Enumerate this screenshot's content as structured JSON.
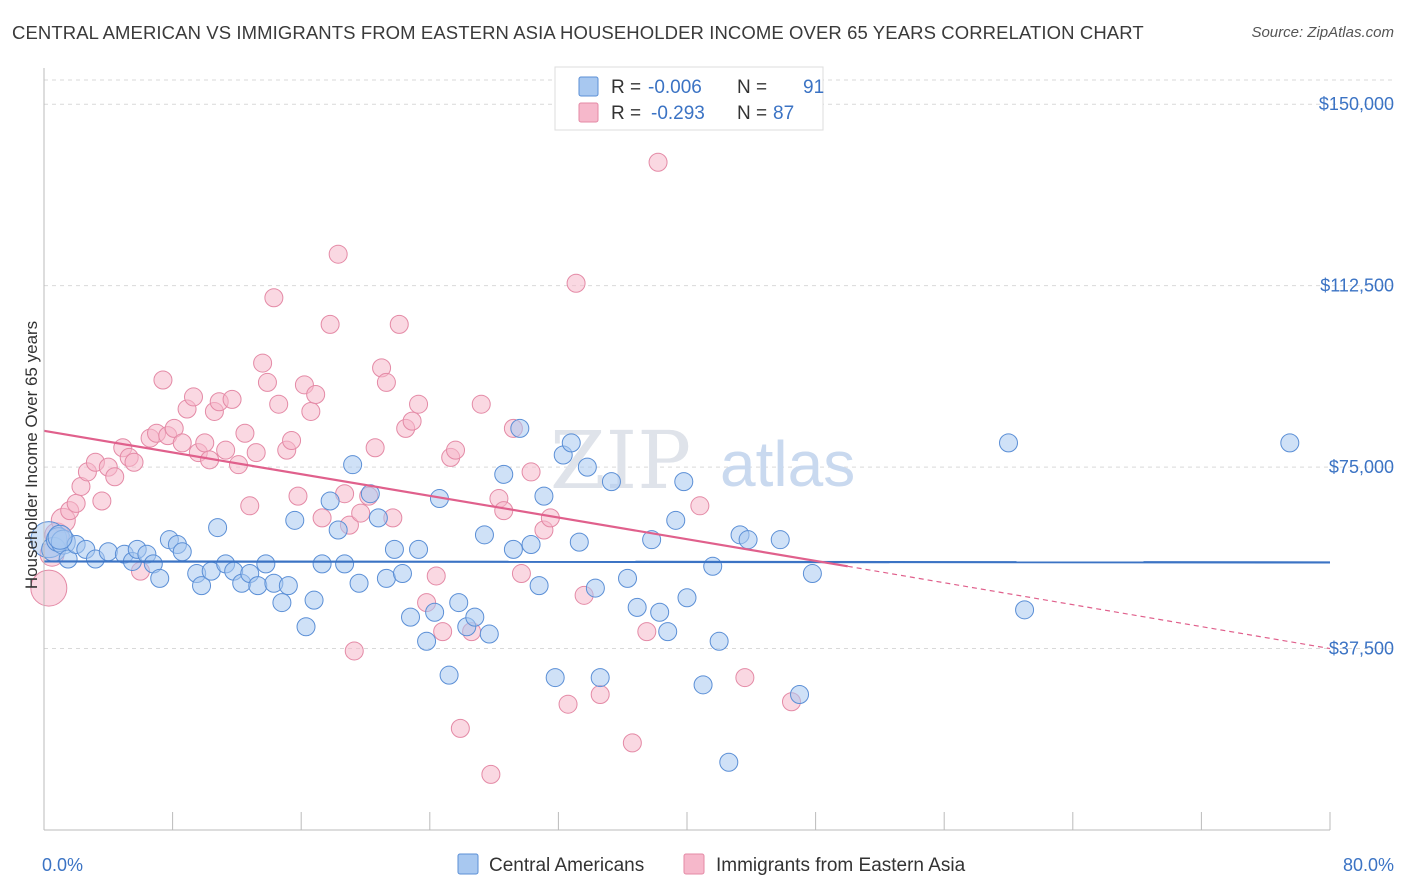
{
  "title": "CENTRAL AMERICAN VS IMMIGRANTS FROM EASTERN ASIA HOUSEHOLDER INCOME OVER 65 YEARS CORRELATION CHART",
  "source": "Source: ZipAtlas.com",
  "watermark": {
    "zip": "ZIP",
    "atlas": "atlas"
  },
  "legend_top": {
    "rows": [
      {
        "r_label": "R =",
        "r_value": "-0.006",
        "n_label": "N =",
        "n_value": "91",
        "color": "#a8c8f0"
      },
      {
        "r_label": "R =",
        "r_value": "-0.293",
        "n_label": "N =",
        "n_value": "87",
        "color": "#f6b8cb"
      }
    ]
  },
  "chart_data": {
    "type": "scatter",
    "title": "CENTRAL AMERICAN VS IMMIGRANTS FROM EASTERN ASIA HOUSEHOLDER INCOME OVER 65 YEARS CORRELATION CHART",
    "xlabel": "",
    "ylabel": "Householder Income Over 65 years",
    "xlim": [
      0,
      80
    ],
    "ylim": [
      0,
      155000
    ],
    "x_tick_labels": [
      "0.0%",
      "80.0%"
    ],
    "y_ticks": [
      37500,
      75000,
      112500,
      150000
    ],
    "y_tick_labels": [
      "$37,500",
      "$75,000",
      "$112,500",
      "$150,000"
    ],
    "grid": true,
    "series": [
      {
        "name": "Central Americans",
        "color": "#a8c8f0",
        "stroke": "#5b8fd6",
        "trend": {
          "x0": 0,
          "y0": 55500,
          "x1": 80,
          "y1": 55300,
          "color": "#3b73c4"
        },
        "points": [
          [
            0.3,
            60000
          ],
          [
            0.6,
            58000
          ],
          [
            0.9,
            60000
          ],
          [
            1.2,
            59500
          ],
          [
            1.5,
            56000
          ],
          [
            2.0,
            59000
          ],
          [
            2.6,
            58000
          ],
          [
            3.2,
            56000
          ],
          [
            4.0,
            57500
          ],
          [
            5.0,
            57000
          ],
          [
            5.5,
            55500
          ],
          [
            5.8,
            58000
          ],
          [
            6.4,
            57000
          ],
          [
            6.8,
            55000
          ],
          [
            7.2,
            52000
          ],
          [
            7.8,
            60000
          ],
          [
            8.3,
            59000
          ],
          [
            8.6,
            57500
          ],
          [
            9.5,
            53000
          ],
          [
            9.8,
            50500
          ],
          [
            10.4,
            53500
          ],
          [
            10.8,
            62500
          ],
          [
            11.3,
            55000
          ],
          [
            11.8,
            53500
          ],
          [
            12.3,
            51000
          ],
          [
            12.8,
            53000
          ],
          [
            13.3,
            50500
          ],
          [
            13.8,
            55000
          ],
          [
            14.3,
            51000
          ],
          [
            14.8,
            47000
          ],
          [
            15.2,
            50500
          ],
          [
            15.6,
            64000
          ],
          [
            16.3,
            42000
          ],
          [
            16.8,
            47500
          ],
          [
            17.3,
            55000
          ],
          [
            17.8,
            68000
          ],
          [
            18.3,
            62000
          ],
          [
            18.7,
            55000
          ],
          [
            19.2,
            75500
          ],
          [
            19.6,
            51000
          ],
          [
            20.3,
            69500
          ],
          [
            20.8,
            64500
          ],
          [
            21.3,
            52000
          ],
          [
            21.8,
            58000
          ],
          [
            22.3,
            53000
          ],
          [
            22.8,
            44000
          ],
          [
            23.3,
            58000
          ],
          [
            23.8,
            39000
          ],
          [
            24.3,
            45000
          ],
          [
            24.6,
            68500
          ],
          [
            25.2,
            32000
          ],
          [
            25.8,
            47000
          ],
          [
            26.3,
            42000
          ],
          [
            26.8,
            44000
          ],
          [
            27.4,
            61000
          ],
          [
            27.7,
            40500
          ],
          [
            28.6,
            73500
          ],
          [
            29.2,
            58000
          ],
          [
            29.6,
            83000
          ],
          [
            30.3,
            59000
          ],
          [
            30.8,
            50500
          ],
          [
            31.1,
            69000
          ],
          [
            31.8,
            31500
          ],
          [
            32.3,
            77500
          ],
          [
            32.8,
            80000
          ],
          [
            33.3,
            59500
          ],
          [
            33.8,
            75000
          ],
          [
            34.3,
            50000
          ],
          [
            34.6,
            31500
          ],
          [
            35.3,
            72000
          ],
          [
            36.3,
            52000
          ],
          [
            36.9,
            46000
          ],
          [
            37.8,
            60000
          ],
          [
            38.3,
            45000
          ],
          [
            38.8,
            41000
          ],
          [
            39.3,
            64000
          ],
          [
            39.8,
            72000
          ],
          [
            40.0,
            48000
          ],
          [
            41.0,
            30000
          ],
          [
            41.6,
            54500
          ],
          [
            42.0,
            39000
          ],
          [
            42.6,
            14000
          ],
          [
            43.3,
            61000
          ],
          [
            43.8,
            60000
          ],
          [
            45.8,
            60000
          ],
          [
            47.0,
            28000
          ],
          [
            47.8,
            53000
          ],
          [
            60.0,
            80000
          ],
          [
            61.0,
            45500
          ],
          [
            77.5,
            80000
          ],
          [
            1.0,
            60500
          ]
        ]
      },
      {
        "name": "Immigrants from Eastern Asia",
        "color": "#f6b8cb",
        "stroke": "#e48aa6",
        "trend": {
          "x0": 0,
          "y0": 82500,
          "x1": 50,
          "y1": 54500,
          "color": "#e0608c",
          "dashed_to": {
            "x": 80,
            "y": 37500
          }
        },
        "points": [
          [
            0.3,
            50000
          ],
          [
            0.5,
            57000
          ],
          [
            0.8,
            61000
          ],
          [
            1.2,
            64000
          ],
          [
            1.6,
            66000
          ],
          [
            2.0,
            67500
          ],
          [
            2.3,
            71000
          ],
          [
            2.7,
            74000
          ],
          [
            3.2,
            76000
          ],
          [
            3.6,
            68000
          ],
          [
            4.0,
            75000
          ],
          [
            4.4,
            73000
          ],
          [
            4.9,
            79000
          ],
          [
            5.3,
            77000
          ],
          [
            5.6,
            76000
          ],
          [
            6.0,
            53500
          ],
          [
            6.6,
            81000
          ],
          [
            7.0,
            82000
          ],
          [
            7.4,
            93000
          ],
          [
            7.7,
            81500
          ],
          [
            8.1,
            83000
          ],
          [
            8.6,
            80000
          ],
          [
            8.9,
            87000
          ],
          [
            9.3,
            89500
          ],
          [
            9.6,
            78000
          ],
          [
            10.0,
            80000
          ],
          [
            10.3,
            76500
          ],
          [
            10.6,
            86500
          ],
          [
            10.9,
            88500
          ],
          [
            11.3,
            78500
          ],
          [
            11.7,
            89000
          ],
          [
            12.1,
            75500
          ],
          [
            12.5,
            82000
          ],
          [
            12.8,
            67000
          ],
          [
            13.2,
            78000
          ],
          [
            13.6,
            96500
          ],
          [
            13.9,
            92500
          ],
          [
            14.3,
            110000
          ],
          [
            14.6,
            88000
          ],
          [
            15.1,
            78500
          ],
          [
            15.4,
            80500
          ],
          [
            15.8,
            69000
          ],
          [
            16.2,
            92000
          ],
          [
            16.6,
            86500
          ],
          [
            16.9,
            90000
          ],
          [
            17.3,
            64500
          ],
          [
            17.8,
            104500
          ],
          [
            18.3,
            119000
          ],
          [
            18.7,
            69500
          ],
          [
            19.0,
            63000
          ],
          [
            19.3,
            37000
          ],
          [
            19.7,
            65500
          ],
          [
            20.2,
            69000
          ],
          [
            20.6,
            79000
          ],
          [
            21.0,
            95500
          ],
          [
            21.3,
            92500
          ],
          [
            21.7,
            64500
          ],
          [
            22.1,
            104500
          ],
          [
            22.5,
            83000
          ],
          [
            22.9,
            84500
          ],
          [
            23.3,
            88000
          ],
          [
            23.8,
            47000
          ],
          [
            24.4,
            52500
          ],
          [
            24.8,
            41000
          ],
          [
            25.3,
            77000
          ],
          [
            25.6,
            78500
          ],
          [
            25.9,
            21000
          ],
          [
            26.6,
            41000
          ],
          [
            27.2,
            88000
          ],
          [
            27.8,
            11500
          ],
          [
            28.3,
            68500
          ],
          [
            28.6,
            66000
          ],
          [
            29.2,
            83000
          ],
          [
            29.7,
            53000
          ],
          [
            30.3,
            74000
          ],
          [
            31.1,
            62000
          ],
          [
            31.5,
            64500
          ],
          [
            32.6,
            26000
          ],
          [
            33.1,
            113000
          ],
          [
            33.6,
            48500
          ],
          [
            34.6,
            28000
          ],
          [
            36.6,
            18000
          ],
          [
            37.5,
            41000
          ],
          [
            38.2,
            138000
          ],
          [
            40.8,
            67000
          ],
          [
            43.6,
            31500
          ],
          [
            46.5,
            26500
          ]
        ]
      }
    ]
  },
  "legend_bottom": [
    {
      "label": "Central Americans",
      "color": "#a8c8f0"
    },
    {
      "label": "Immigrants from Eastern Asia",
      "color": "#f6b8cb"
    }
  ]
}
